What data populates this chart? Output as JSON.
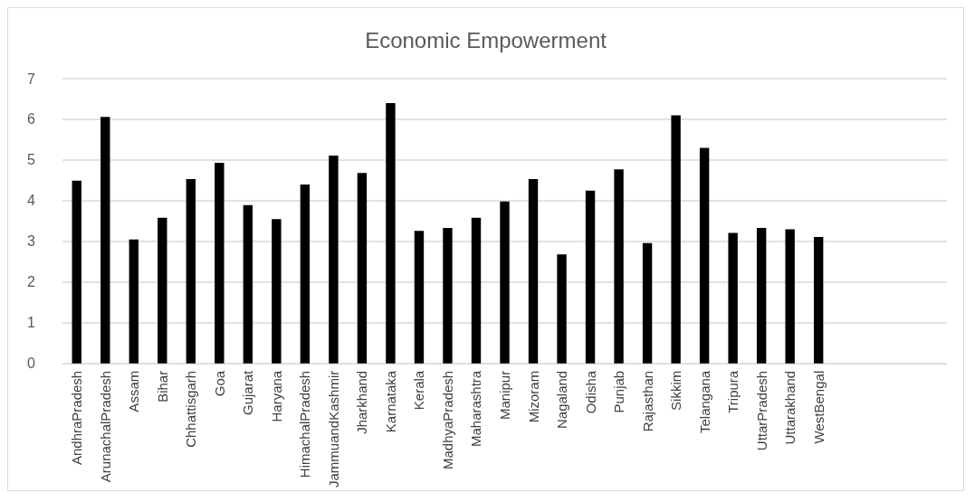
{
  "chart_data": {
    "type": "bar",
    "title": "Economic Empowerment",
    "categories": [
      "AndhraPradesh",
      "ArunachalPradesh",
      "Assam",
      "Bihar",
      "Chhattisgarh",
      "Goa",
      "Gujarat",
      "Haryana",
      "HimachalPradesh",
      "JammuandKashmir",
      "Jharkhand",
      "Karnataka",
      "Kerala",
      "MadhyaPradesh",
      "Maharashtra",
      "Manipur",
      "Mizoram",
      "Nagaland",
      "Odisha",
      "Punjab",
      "Rajasthan",
      "Sikkim",
      "Telangana",
      "Tripura",
      "UttarPradesh",
      "Uttarakhand",
      "WestBengal",
      null,
      null,
      null,
      null
    ],
    "values": [
      4.49,
      6.06,
      3.05,
      3.58,
      4.53,
      4.93,
      3.89,
      3.55,
      4.4,
      5.11,
      4.68,
      6.4,
      3.26,
      3.33,
      3.58,
      3.98,
      4.53,
      2.68,
      4.25,
      4.77,
      2.96,
      6.1,
      5.3,
      3.21,
      3.33,
      3.3,
      3.11,
      null,
      null,
      null,
      null
    ],
    "color": "#000000",
    "ylim": [
      0,
      7
    ],
    "yticks": [
      0,
      1,
      2,
      3,
      4,
      5,
      6,
      7
    ],
    "grid": "y"
  }
}
